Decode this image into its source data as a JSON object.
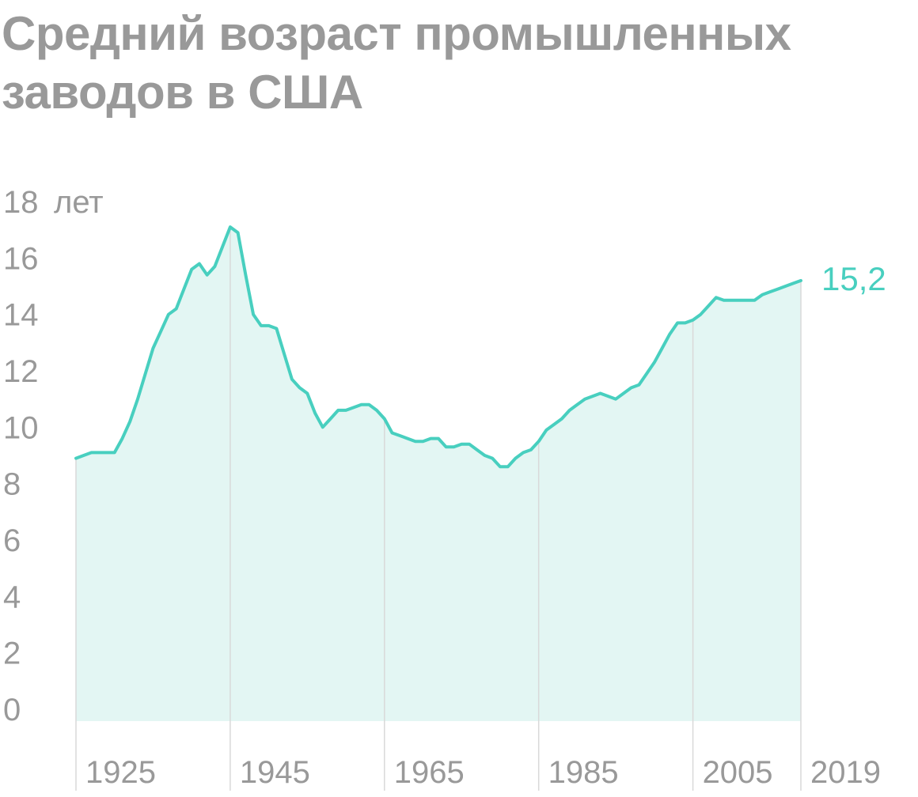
{
  "chart_data": {
    "type": "area",
    "title": "Средний возраст промышленных заводов в США",
    "y_unit_label": "лет",
    "ylim": [
      0,
      18
    ],
    "y_ticks": [
      "0",
      "2",
      "4",
      "6",
      "8",
      "10",
      "12",
      "14",
      "16",
      "18"
    ],
    "x_tick_labels": [
      "1925",
      "1945",
      "1965",
      "1985",
      "2005",
      "2019"
    ],
    "x_tick_values": [
      1925,
      1945,
      1965,
      1985,
      2005,
      2019
    ],
    "xlim": [
      1925,
      2019
    ],
    "end_label": "15,2",
    "grid": "vertical lines at tick years",
    "colors": {
      "line": "#48cfbf",
      "fill": "#e3f6f3",
      "text": "#999999",
      "grid": "#d9d9d9"
    },
    "series": [
      {
        "x": [
          1925,
          1926,
          1927,
          1928,
          1929,
          1930,
          1931,
          1932,
          1933,
          1934,
          1935,
          1936,
          1937,
          1938,
          1939,
          1940,
          1941,
          1942,
          1943,
          1944,
          1945,
          1946,
          1947,
          1948,
          1949,
          1950,
          1951,
          1952,
          1953,
          1954,
          1955,
          1956,
          1957,
          1958,
          1959,
          1960,
          1961,
          1962,
          1963,
          1964,
          1965,
          1966,
          1967,
          1968,
          1969,
          1970,
          1971,
          1972,
          1973,
          1974,
          1975,
          1976,
          1977,
          1978,
          1979,
          1980,
          1981,
          1982,
          1983,
          1984,
          1985,
          1986,
          1987,
          1988,
          1989,
          1990,
          1991,
          1992,
          1993,
          1994,
          1995,
          1996,
          1997,
          1998,
          1999,
          2000,
          2001,
          2002,
          2003,
          2004,
          2005,
          2006,
          2007,
          2008,
          2009,
          2010,
          2011,
          2012,
          2013,
          2014,
          2015,
          2016,
          2017,
          2018,
          2019
        ],
        "values": [
          8.9,
          9.0,
          9.1,
          9.1,
          9.1,
          9.1,
          9.6,
          10.2,
          11.0,
          11.9,
          12.8,
          13.4,
          14.0,
          14.2,
          14.9,
          15.6,
          15.8,
          15.4,
          15.7,
          16.4,
          17.1,
          16.9,
          15.4,
          14.0,
          13.6,
          13.6,
          13.5,
          12.6,
          11.7,
          11.4,
          11.2,
          10.5,
          10.0,
          10.3,
          10.6,
          10.6,
          10.7,
          10.8,
          10.8,
          10.6,
          10.3,
          9.8,
          9.7,
          9.6,
          9.5,
          9.5,
          9.6,
          9.6,
          9.3,
          9.3,
          9.4,
          9.4,
          9.2,
          9.0,
          8.9,
          8.6,
          8.6,
          8.9,
          9.1,
          9.2,
          9.5,
          9.9,
          10.1,
          10.3,
          10.6,
          10.8,
          11.0,
          11.1,
          11.2,
          11.1,
          11.0,
          11.2,
          11.4,
          11.5,
          11.9,
          12.3,
          12.8,
          13.3,
          13.7,
          13.7,
          13.8,
          14.0,
          14.3,
          14.6,
          14.5,
          14.5,
          14.5,
          14.5,
          14.5,
          14.7,
          14.8,
          14.9,
          15.0,
          15.1,
          15.2
        ]
      }
    ]
  }
}
